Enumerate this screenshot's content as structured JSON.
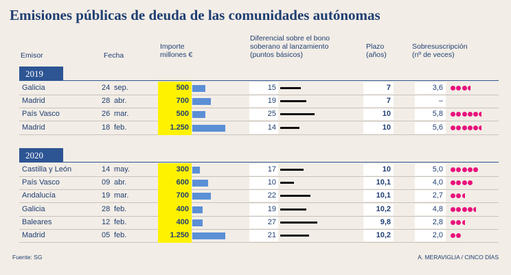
{
  "title": "Emisiones públicas de deuda de las comunidades autónomas",
  "headers": {
    "emisor": "Emisor",
    "fecha": "Fecha",
    "importe": [
      "Importe",
      "millones €"
    ],
    "diferencial": [
      "Diferencial sobre el  bono",
      "soberano al lanzamiento",
      "(puntos básicos)"
    ],
    "plazo": [
      "Plazo",
      "(años)"
    ],
    "sobres": [
      "Sobresuscripción",
      "(nº de veces)"
    ]
  },
  "colors": {
    "navy": "#1f3e72",
    "year_box": "#2d5594",
    "highlight": "#fff200",
    "bar_blue": "#5b8fd6",
    "bar_black": "#0d0d0d",
    "dot_pink": "#e8127c"
  },
  "chart_data": {
    "type": "table",
    "groups": [
      {
        "year": "2019",
        "rows": [
          {
            "emisor": "Galicia",
            "day": "24",
            "month": "sep.",
            "importe_label": "500",
            "importe": 500,
            "diferencial": 15,
            "plazo": "7",
            "sobres_label": "3,6",
            "sobres": 3.6
          },
          {
            "emisor": "Madrid",
            "day": "28",
            "month": "abr.",
            "importe_label": "700",
            "importe": 700,
            "diferencial": 19,
            "plazo": "7",
            "sobres_label": "–",
            "sobres": 0
          },
          {
            "emisor": "País Vasco",
            "day": "26",
            "month": "mar.",
            "importe_label": "500",
            "importe": 500,
            "diferencial": 25,
            "plazo": "10",
            "sobres_label": "5,8",
            "sobres": 5.8
          },
          {
            "emisor": "Madrid",
            "day": "18",
            "month": "feb.",
            "importe_label": "1.250",
            "importe": 1250,
            "diferencial": 14,
            "plazo": "10",
            "sobres_label": "5,6",
            "sobres": 5.6
          }
        ]
      },
      {
        "year": "2020",
        "rows": [
          {
            "emisor": "Castilla y León",
            "day": "14",
            "month": "may.",
            "importe_label": "300",
            "importe": 300,
            "diferencial": 17,
            "plazo": "10",
            "sobres_label": "5,0",
            "sobres": 5.0
          },
          {
            "emisor": "País Vasco",
            "day": "09",
            "month": "abr.",
            "importe_label": "600",
            "importe": 600,
            "diferencial": 10,
            "plazo": "10,1",
            "sobres_label": "4,0",
            "sobres": 4.0
          },
          {
            "emisor": "Andalucía",
            "day": "19",
            "month": "mar.",
            "importe_label": "700",
            "importe": 700,
            "diferencial": 22,
            "plazo": "10,1",
            "sobres_label": "2,7",
            "sobres": 2.7
          },
          {
            "emisor": "Galicia",
            "day": "28",
            "month": "feb.",
            "importe_label": "400",
            "importe": 400,
            "diferencial": 19,
            "plazo": "10,2",
            "sobres_label": "4,8",
            "sobres": 4.8
          },
          {
            "emisor": "Baleares",
            "day": "12",
            "month": "feb.",
            "importe_label": "400",
            "importe": 400,
            "diferencial": 27,
            "plazo": "9,8",
            "sobres_label": "2,8",
            "sobres": 2.8
          },
          {
            "emisor": "Madrid",
            "day": "05",
            "month": "feb.",
            "importe_label": "1.250",
            "importe": 1250,
            "diferencial": 21,
            "plazo": "10,2",
            "sobres_label": "2,0",
            "sobres": 2.0
          }
        ]
      }
    ]
  },
  "footer": {
    "source": "Fuente: SG",
    "credit": "A. MERAVIGLIA / CINCO DÍAS"
  }
}
